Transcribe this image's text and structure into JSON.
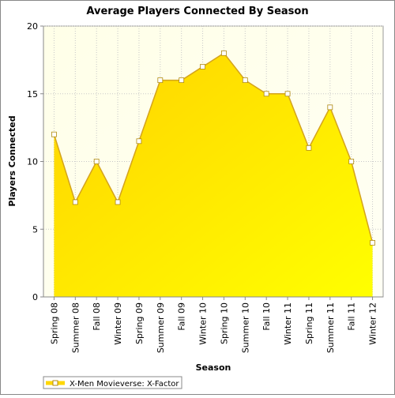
{
  "chart_data": {
    "type": "area",
    "title": "Average Players Connected By Season",
    "x_label": "Season",
    "y_label": "Players Connected",
    "categories": [
      "Spring 08",
      "Summer 08",
      "Fall 08",
      "Winter 09",
      "Spring 09",
      "Summer 09",
      "Fall 09",
      "Winter 10",
      "Spring 10",
      "Summer 10",
      "Fall 10",
      "Winter 11",
      "Spring 11",
      "Summer 11",
      "Fall 11",
      "Winter 12"
    ],
    "series": [
      {
        "name": "X-Men Movieverse: X-Factor",
        "color": "#ffd700",
        "values": [
          12,
          7,
          10,
          7,
          11.5,
          16,
          16,
          17,
          18,
          16,
          15,
          15,
          11,
          14,
          10,
          4
        ]
      }
    ],
    "ylim": [
      0,
      20
    ],
    "yticks": [
      0,
      5,
      10,
      15,
      20
    ],
    "grid": true,
    "legend": "bottom-left"
  }
}
